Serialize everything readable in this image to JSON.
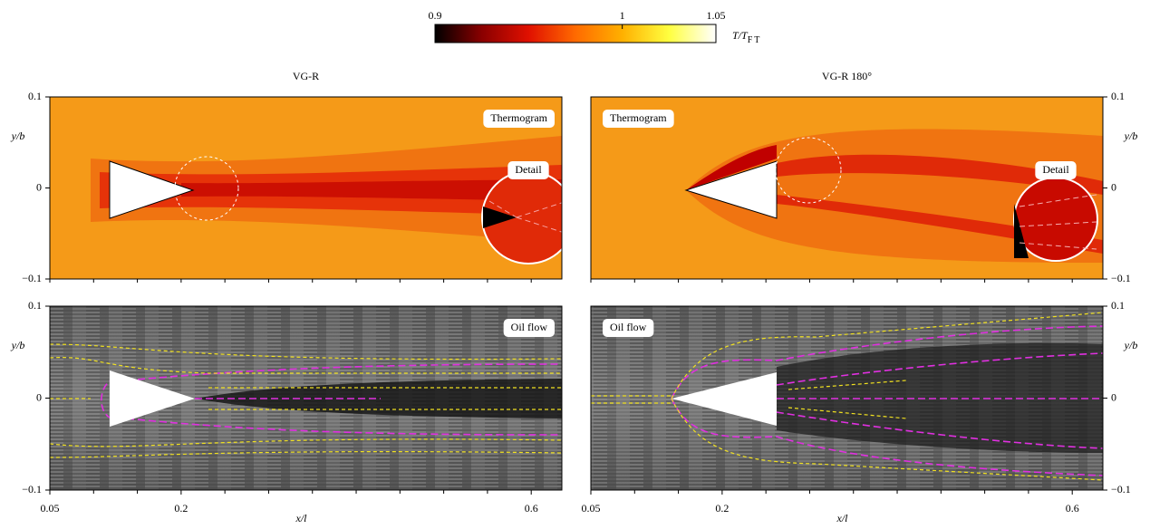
{
  "chart_data": [
    {
      "type": "colorbar",
      "label": "T/T",
      "label_sub": "FT",
      "xlim": [
        0.9,
        1.05
      ],
      "xticks": [
        0.9,
        1,
        1.05
      ],
      "colors": [
        "#000000",
        "#8a0000",
        "#e01000",
        "#ff6a00",
        "#ffb000",
        "#ffff40",
        "#ffffff"
      ]
    },
    {
      "type": "image",
      "title": "VG-R",
      "tag": "Thermogram",
      "inset": "Detail",
      "ylabel": "y/b",
      "ylim": [
        -0.1,
        0.1
      ],
      "yticks": [
        {
          "value": -0.1,
          "label": "−0.1"
        },
        0,
        0.1
      ],
      "xlim": [
        0.05,
        0.635
      ],
      "xminor": [
        0.05,
        0.1,
        0.15,
        0.2,
        0.25,
        0.3,
        0.35,
        0.4,
        0.45,
        0.5,
        0.55,
        0.6
      ]
    },
    {
      "type": "image",
      "title": "VG-R 180°",
      "tag": "Thermogram",
      "inset": "Detail",
      "ylabel": "y/b",
      "ylim": [
        -0.1,
        0.1
      ],
      "yticks": [
        {
          "value": -0.1,
          "label": "−0.1"
        },
        0,
        0.1
      ],
      "xlim": [
        0.05,
        0.635
      ],
      "xminor": [
        0.05,
        0.1,
        0.15,
        0.2,
        0.25,
        0.3,
        0.35,
        0.4,
        0.45,
        0.5,
        0.55,
        0.6
      ]
    },
    {
      "type": "image",
      "tag": "Oil flow",
      "ylabel": "y/b",
      "xlabel": "x/l",
      "ylim": [
        -0.1,
        0.1
      ],
      "yticks": [
        {
          "value": -0.1,
          "label": "−0.1"
        },
        0,
        0.1
      ],
      "xlim": [
        0.05,
        0.635
      ],
      "xticks": [
        0.05,
        0.2,
        0.6
      ],
      "xminor": [
        0.1,
        0.15,
        0.25,
        0.3,
        0.35,
        0.4,
        0.45,
        0.5,
        0.55
      ]
    },
    {
      "type": "image",
      "tag": "Oil flow",
      "ylabel": "y/b",
      "xlabel": "x/l",
      "ylim": [
        -0.1,
        0.1
      ],
      "yticks": [
        {
          "value": -0.1,
          "label": "−0.1"
        },
        0,
        0.1
      ],
      "xlim": [
        0.05,
        0.635
      ],
      "xticks": [
        0.05,
        0.2,
        0.6
      ],
      "xminor": [
        0.1,
        0.15,
        0.25,
        0.3,
        0.35,
        0.4,
        0.45,
        0.5,
        0.55
      ]
    }
  ]
}
